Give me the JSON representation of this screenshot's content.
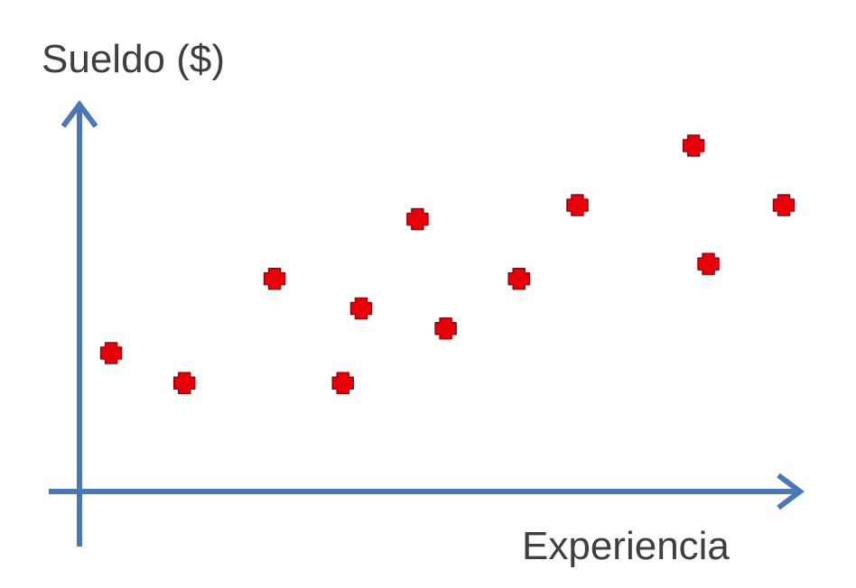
{
  "chart_data": {
    "type": "scatter",
    "title": "",
    "xlabel": "Experiencia",
    "ylabel": "Sueldo ($)",
    "xlim": [
      0,
      12
    ],
    "ylim": [
      0,
      12
    ],
    "grid": false,
    "legend": "none",
    "axis_color": "#4a77b5",
    "marker": "plus",
    "marker_color": "#e8000b",
    "marker_edge_color": "#9a0006",
    "series": [
      {
        "points": [
          {
            "x": 0.45,
            "y": 4.95
          },
          {
            "x": 1.49,
            "y": 3.88
          },
          {
            "x": 2.77,
            "y": 7.61
          },
          {
            "x": 3.74,
            "y": 3.88
          },
          {
            "x": 4.0,
            "y": 6.55
          },
          {
            "x": 4.8,
            "y": 9.74
          },
          {
            "x": 5.2,
            "y": 5.83
          },
          {
            "x": 6.24,
            "y": 7.61
          },
          {
            "x": 7.07,
            "y": 10.24
          },
          {
            "x": 8.72,
            "y": 12.37
          },
          {
            "x": 8.93,
            "y": 8.14
          },
          {
            "x": 10.0,
            "y": 10.24
          }
        ]
      }
    ]
  }
}
